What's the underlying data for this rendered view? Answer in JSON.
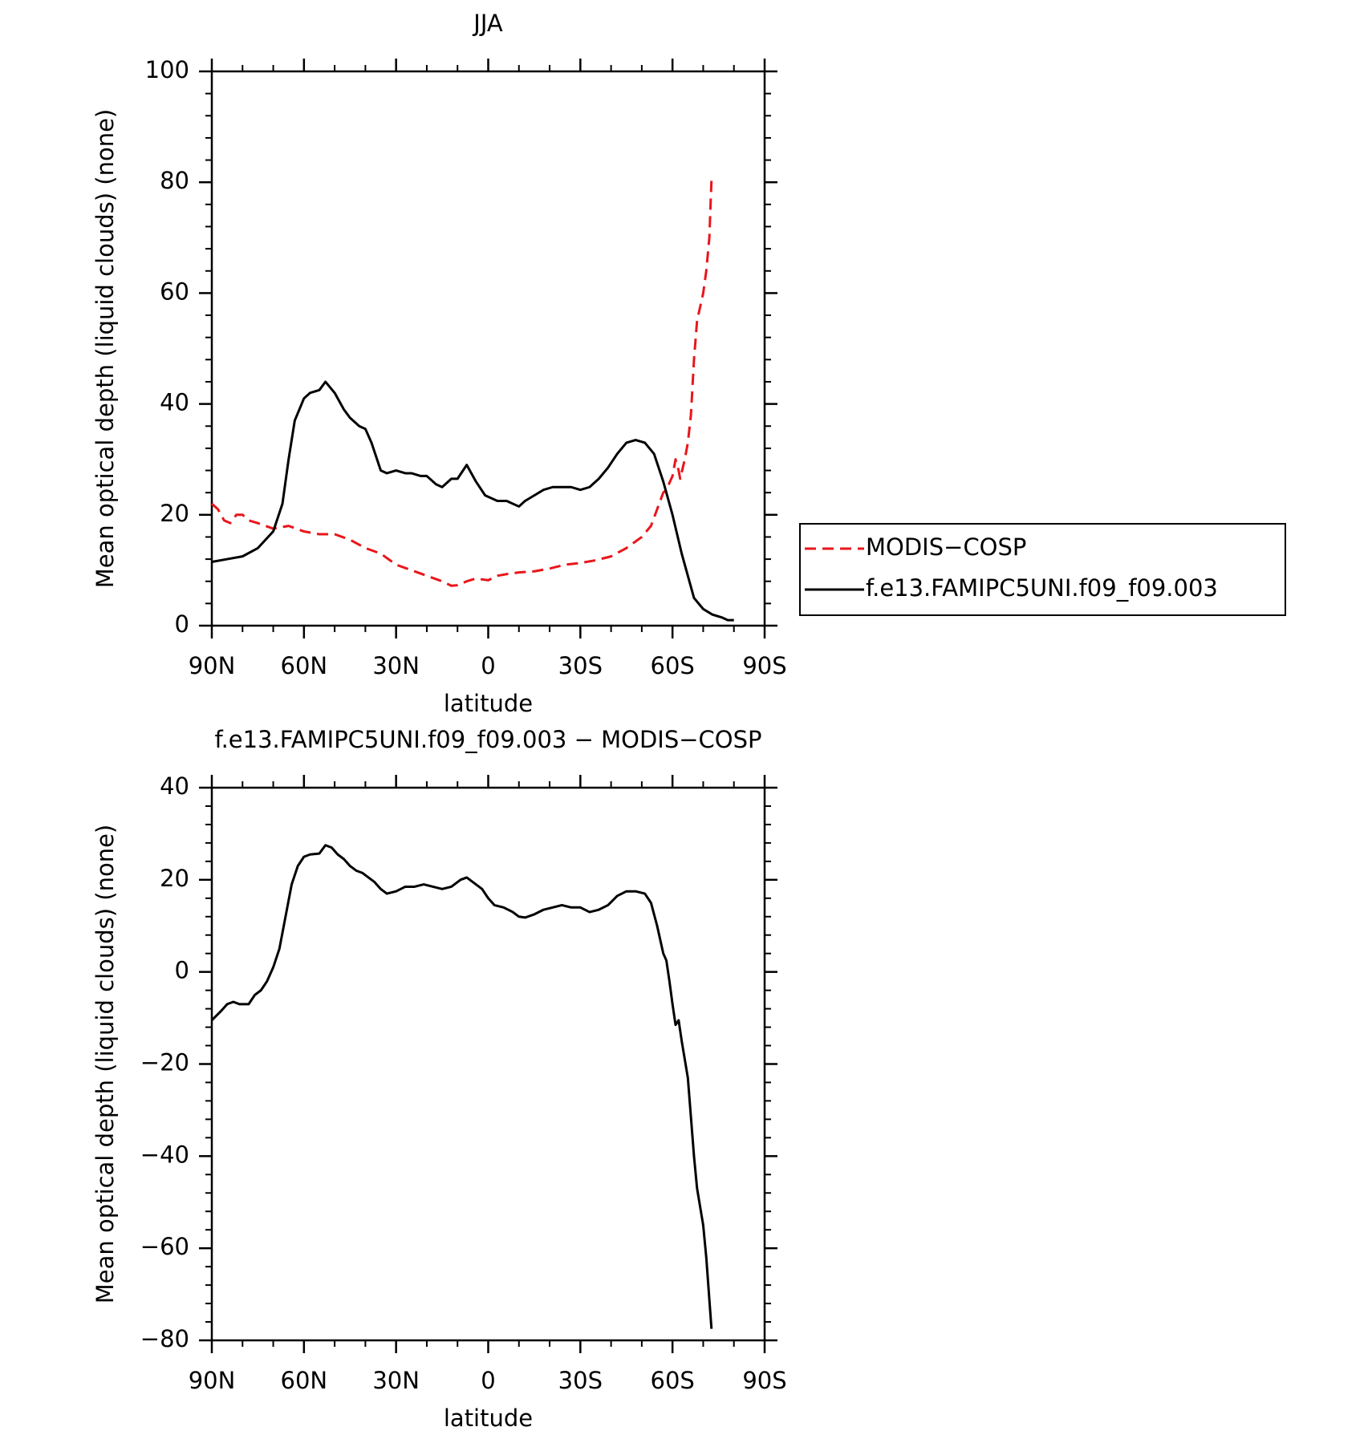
{
  "chart_data": [
    {
      "type": "line",
      "title": "JJA",
      "xlabel": "latitude",
      "ylabel": "Mean optical depth (liquid clouds) (none)",
      "xlim": [
        90,
        -90
      ],
      "xticks": [
        {
          "value": 90,
          "label": "90N"
        },
        {
          "value": 60,
          "label": "60N"
        },
        {
          "value": 30,
          "label": "30N"
        },
        0,
        {
          "value": -30,
          "label": "30S"
        },
        {
          "value": -60,
          "label": "60S"
        },
        {
          "value": -90,
          "label": "90S"
        }
      ],
      "ylim": [
        0,
        100
      ],
      "yticks": [
        0,
        20,
        40,
        60,
        80,
        100
      ],
      "legend": "right",
      "series": [
        {
          "name": "MODIS−COSP",
          "color": "#e8161b",
          "dash": true,
          "x": [
            90,
            88,
            86,
            84,
            82,
            80,
            78,
            75,
            70,
            65,
            60,
            55,
            50,
            45,
            40,
            35,
            30,
            25,
            20,
            15,
            12,
            10,
            7,
            4,
            0,
            -3,
            -6,
            -10,
            -15,
            -20,
            -25,
            -30,
            -35,
            -40,
            -45,
            -50,
            -53,
            -55,
            -57,
            -58,
            -60,
            -61,
            -62,
            -62.5,
            -64,
            -65,
            -66,
            -67,
            -68,
            -70,
            -71,
            -72,
            -72.7
          ],
          "values": [
            22,
            21,
            19,
            18.5,
            20,
            20,
            19,
            18.5,
            17.5,
            18,
            17,
            16.5,
            16.5,
            15.5,
            14,
            13,
            11,
            10,
            9,
            8,
            7.2,
            7.3,
            8,
            8.5,
            8.2,
            9,
            9.3,
            9.6,
            9.8,
            10.3,
            11,
            11.3,
            11.8,
            12.5,
            14,
            16,
            18,
            21,
            24,
            24.5,
            27,
            30,
            28,
            26.5,
            30,
            33,
            38,
            48,
            55,
            60,
            64,
            70,
            80.5
          ]
        },
        {
          "name": "f.e13.FAMIPC5UNI.f09_f09.003",
          "color": "#000000",
          "dash": false,
          "x": [
            90,
            85,
            80,
            75,
            70,
            67,
            65,
            63,
            60,
            58,
            55,
            53,
            50,
            47,
            45,
            42,
            40,
            38,
            35,
            33,
            30,
            27,
            25,
            22,
            20,
            17,
            15,
            12,
            10,
            7,
            4,
            1,
            -3,
            -6,
            -10,
            -12,
            -15,
            -18,
            -21,
            -24,
            -27,
            -30,
            -33,
            -36,
            -39,
            -42,
            -45,
            -48,
            -51,
            -54,
            -57,
            -60,
            -63,
            -65,
            -67,
            -70,
            -73,
            -76,
            -78,
            -80
          ],
          "values": [
            11.5,
            12,
            12.5,
            14,
            17,
            22,
            30,
            37,
            41,
            42,
            42.5,
            44,
            42,
            39,
            37.5,
            36,
            35.5,
            33,
            28,
            27.5,
            28,
            27.5,
            27.5,
            27,
            27,
            25.5,
            25,
            26.5,
            26.5,
            29,
            26,
            23.5,
            22.5,
            22.5,
            21.5,
            22.5,
            23.5,
            24.5,
            25,
            25,
            25,
            24.5,
            25,
            26.5,
            28.5,
            31,
            33,
            33.5,
            33,
            31,
            26,
            20,
            13,
            9,
            5,
            3,
            2,
            1.5,
            1,
            1
          ]
        }
      ]
    },
    {
      "type": "line",
      "title": "f.e13.FAMIPC5UNI.f09_f09.003 − MODIS−COSP",
      "xlabel": "latitude",
      "ylabel": "Mean optical depth (liquid clouds) (none)",
      "xlim": [
        90,
        -90
      ],
      "xticks": [
        {
          "value": 90,
          "label": "90N"
        },
        {
          "value": 60,
          "label": "60N"
        },
        {
          "value": 30,
          "label": "30N"
        },
        0,
        {
          "value": -30,
          "label": "30S"
        },
        {
          "value": -60,
          "label": "60S"
        },
        {
          "value": -90,
          "label": "90S"
        }
      ],
      "ylim": [
        -80,
        40
      ],
      "yticks": [
        {
          "value": -80,
          "label": "−80"
        },
        {
          "value": -60,
          "label": "−60"
        },
        {
          "value": -40,
          "label": "−40"
        },
        {
          "value": -20,
          "label": "−20"
        },
        0,
        20,
        40
      ],
      "series": [
        {
          "color": "#000000",
          "dash": false,
          "x": [
            90,
            87,
            85,
            83,
            81,
            78,
            76,
            74,
            72,
            70,
            68,
            66,
            64,
            62,
            60,
            58,
            55,
            53,
            51,
            49,
            47,
            45,
            43,
            41,
            39,
            37,
            35,
            33,
            30,
            27,
            24,
            21,
            18,
            15,
            12,
            9,
            7,
            5,
            2,
            0,
            -2,
            -5,
            -8,
            -10,
            -12,
            -15,
            -18,
            -21,
            -24,
            -27,
            -30,
            -33,
            -36,
            -39,
            -42,
            -45,
            -48,
            -51,
            -53,
            -55,
            -57,
            -58,
            -59,
            -60,
            -61,
            -62,
            -63,
            -65,
            -67,
            -68,
            -70,
            -71,
            -72.7
          ],
          "values": [
            -10.5,
            -8.5,
            -7,
            -6.5,
            -7,
            -7,
            -5,
            -4,
            -2,
            1,
            5,
            12,
            19,
            23,
            25,
            25.5,
            25.7,
            27.5,
            27,
            25.5,
            24.5,
            23,
            22,
            21.5,
            20.5,
            19.5,
            18,
            17,
            17.5,
            18.5,
            18.5,
            19,
            18.5,
            18,
            18.5,
            20,
            20.5,
            19.5,
            18,
            16,
            14.5,
            14,
            13,
            12,
            11.8,
            12.5,
            13.5,
            14,
            14.5,
            14,
            14,
            13,
            13.5,
            14.5,
            16.5,
            17.5,
            17.5,
            17,
            15,
            10,
            4,
            2.5,
            -2,
            -7,
            -11.5,
            -10.5,
            -15,
            -23,
            -40,
            -47,
            -55,
            -62,
            -77.5
          ]
        }
      ]
    }
  ]
}
